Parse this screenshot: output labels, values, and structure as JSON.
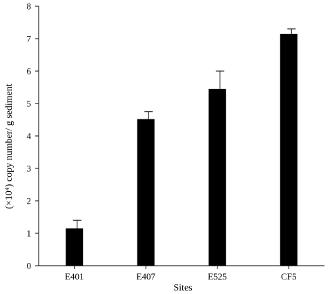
{
  "chart_data": {
    "type": "bar",
    "categories": [
      "E401",
      "E407",
      "E525",
      "CF5"
    ],
    "values": [
      1.15,
      4.52,
      5.45,
      7.15
    ],
    "error_upper": [
      1.4,
      4.75,
      6.0,
      7.3
    ],
    "xlabel": "Sites",
    "ylabel": "(×10⁴) copy number/ g sediment",
    "ylim": [
      0,
      8
    ],
    "yticks": [
      "0",
      "1",
      "2",
      "3",
      "4",
      "5",
      "6",
      "7",
      "8"
    ],
    "grid": false,
    "legend": "none",
    "bar_color": "#000000"
  }
}
